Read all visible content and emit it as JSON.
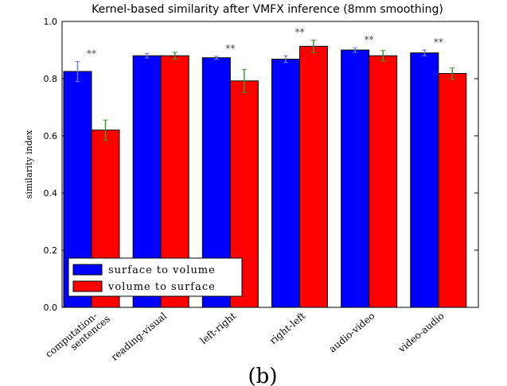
{
  "chart_data": {
    "type": "bar",
    "title": "Kernel-based similarity after VMFX inference (8mm smoothing)",
    "y_label": "similarity index",
    "caption": "(b)",
    "categories": [
      "computation-\nsentences",
      "reading-visual",
      "left-right",
      "right-left",
      "audio-video",
      "video-audio"
    ],
    "series": [
      {
        "name": "surface to volume",
        "color": "#0000ff",
        "error_color": "#6a7ae8",
        "values": [
          0.825,
          0.88,
          0.873,
          0.868,
          0.9,
          0.89
        ],
        "errors": [
          0.035,
          0.008,
          0.005,
          0.012,
          0.008,
          0.01
        ]
      },
      {
        "name": "volume to surface",
        "color": "#ff0000",
        "error_color": "#3a9a2a",
        "values": [
          0.62,
          0.88,
          0.792,
          0.913,
          0.88,
          0.818
        ],
        "errors": [
          0.035,
          0.012,
          0.04,
          0.022,
          0.018,
          0.02
        ]
      }
    ],
    "significance": [
      "**",
      null,
      "**",
      "**",
      "**",
      "**"
    ],
    "ylim": [
      0,
      1
    ],
    "yticks": [
      {
        "value": 0,
        "label": "0.0"
      },
      0.2,
      0.4,
      0.6,
      0.8,
      {
        "value": 1,
        "label": "1.0"
      }
    ],
    "legend": "lower left"
  }
}
